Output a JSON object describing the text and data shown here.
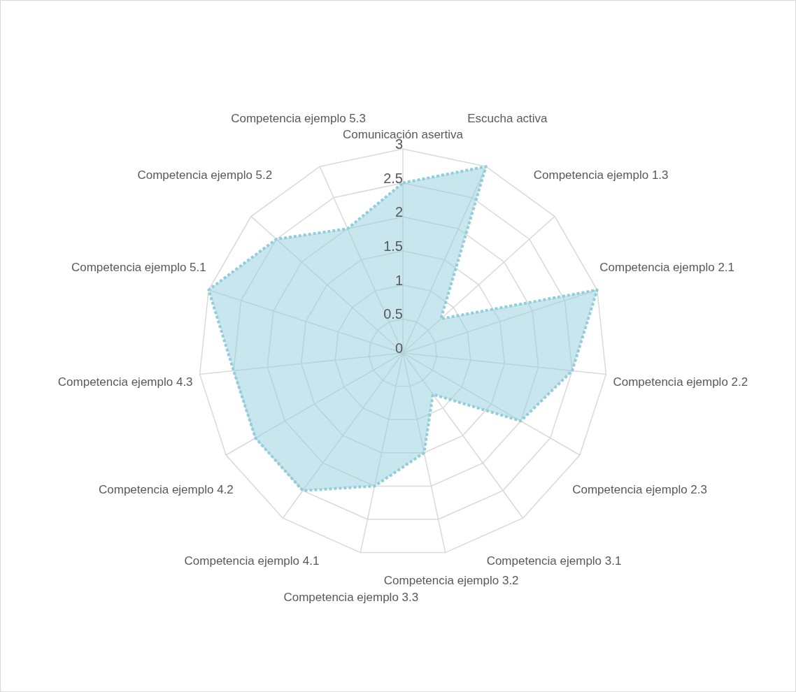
{
  "chart_data": {
    "type": "radar",
    "categories": [
      "Comunicación asertiva",
      "Escucha activa",
      "Competencia ejemplo 1.3",
      "Competencia ejemplo 2.1",
      "Competencia ejemplo 2.2",
      "Competencia ejemplo 2.3",
      "Competencia ejemplo 3.1",
      "Competencia ejemplo 3.2",
      "Competencia ejemplo 3.3",
      "Competencia ejemplo 4.1",
      "Competencia ejemplo 4.2",
      "Competencia ejemplo 4.3",
      "Competencia ejemplo 5.1",
      "Competencia ejemplo 5.2",
      "Competencia ejemplo 5.3"
    ],
    "series": [
      {
        "color": "#92cddc",
        "values": [
          2.5,
          3,
          0.75,
          3,
          2.5,
          2,
          0.75,
          1.5,
          2,
          2.5,
          2.5,
          2.5,
          3,
          2.5,
          2
        ]
      }
    ],
    "ylim": [
      0,
      3
    ],
    "yticks": [
      0,
      0.5,
      1,
      1.5,
      2,
      2.5,
      3
    ],
    "grid": true,
    "line_style": "dotted"
  }
}
